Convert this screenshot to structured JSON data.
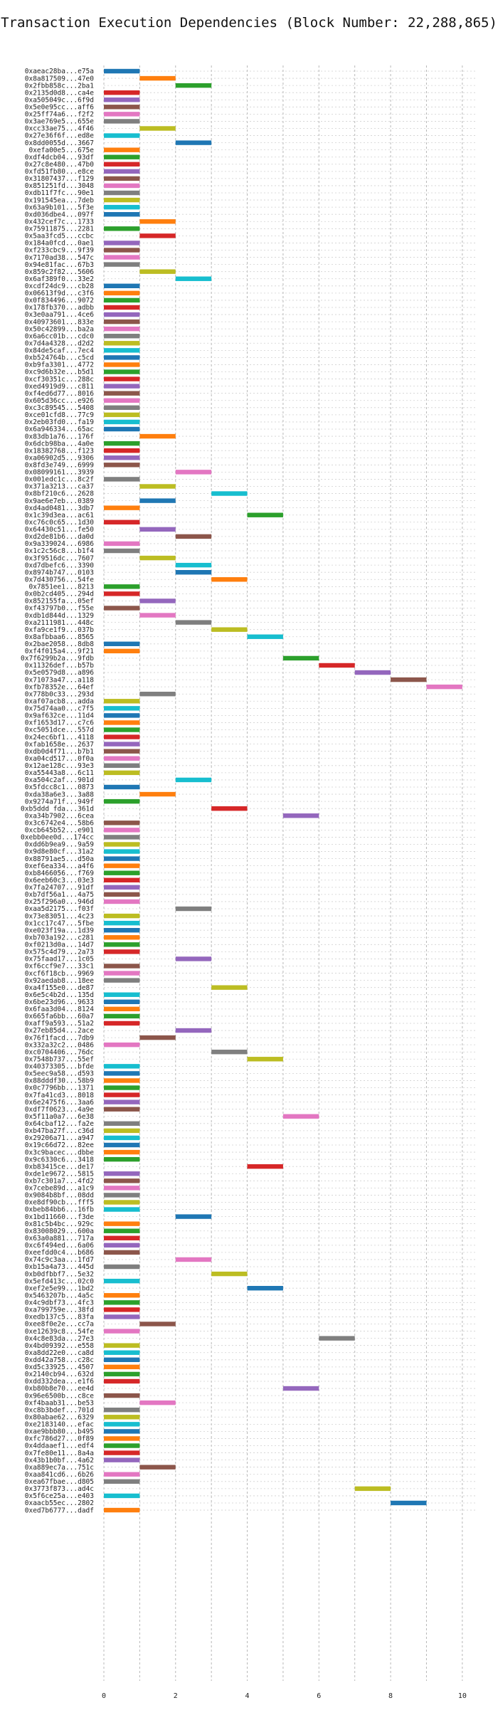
{
  "chart_data": {
    "type": "bar",
    "orientation": "horizontal-gantt",
    "title": "Transaction Execution Dependencies (Block Number: 22,288,865)",
    "xlabel": "",
    "ylabel": "",
    "xlim": [
      0,
      10.4
    ],
    "xticks": [
      0,
      2,
      4,
      6,
      8,
      10
    ],
    "grid": true,
    "palette": [
      "#1f77b4",
      "#ff7f0e",
      "#2ca02c",
      "#d62728",
      "#9467bd",
      "#8c564b",
      "#e377c2",
      "#7f7f7f",
      "#bcbd22",
      "#17becf"
    ],
    "transactions": [
      {
        "hash": "0xaeac28ba...e75a",
        "start": 0
      },
      {
        "hash": "0x8a817509...47e0",
        "start": 1
      },
      {
        "hash": "0x2fbb858c...2ba1",
        "start": 2
      },
      {
        "hash": "0x2135d0d8...ca4e",
        "start": 0
      },
      {
        "hash": "0xa505049c...6f9d",
        "start": 0
      },
      {
        "hash": "0x5e0e95cc...aff6",
        "start": 0
      },
      {
        "hash": "0x25ff74a6...f2f2",
        "start": 0
      },
      {
        "hash": "0x3ae769e5...655e",
        "start": 0
      },
      {
        "hash": "0xcc33ae75...4f46",
        "start": 1
      },
      {
        "hash": "0x27e36f6f...ed8e",
        "start": 0
      },
      {
        "hash": "0x8dd0055d...3667",
        "start": 2
      },
      {
        "hash": "0xefa00e5...675e",
        "start": 0
      },
      {
        "hash": "0xdf4dcb04...93df",
        "start": 0
      },
      {
        "hash": "0x27c8e480...47b0",
        "start": 0
      },
      {
        "hash": "0xfd51fb80...e8ce",
        "start": 0
      },
      {
        "hash": "0x31807437...f129",
        "start": 0
      },
      {
        "hash": "0x851251fd...3048",
        "start": 0
      },
      {
        "hash": "0xdb11f7fc...90e1",
        "start": 0
      },
      {
        "hash": "0x191545ea...7deb",
        "start": 0
      },
      {
        "hash": "0x63a9b101...5f3e",
        "start": 0
      },
      {
        "hash": "0xd036dbe4...097f",
        "start": 0
      },
      {
        "hash": "0x432cef7c...1733",
        "start": 1
      },
      {
        "hash": "0x75911875...2281",
        "start": 0
      },
      {
        "hash": "0x5aa3fcd5...ccbc",
        "start": 1
      },
      {
        "hash": "0x184a0fcd...0ae1",
        "start": 0
      },
      {
        "hash": "0xf233cbc9...9f39",
        "start": 0
      },
      {
        "hash": "0x7170ad38...547c",
        "start": 0
      },
      {
        "hash": "0x94e81fac...67b3",
        "start": 0
      },
      {
        "hash": "0x859c2f82...5606",
        "start": 1
      },
      {
        "hash": "0x6af389f0...33e2",
        "start": 2
      },
      {
        "hash": "0xcdf24dc9...cb28",
        "start": 0
      },
      {
        "hash": "0x06613f9d...c3f6",
        "start": 0
      },
      {
        "hash": "0x0f834496...9072",
        "start": 0
      },
      {
        "hash": "0x178fb370...adbb",
        "start": 0
      },
      {
        "hash": "0x3e0aa791...4ce6",
        "start": 0
      },
      {
        "hash": "0x40973601...833e",
        "start": 0
      },
      {
        "hash": "0x50c42899...ba2a",
        "start": 0
      },
      {
        "hash": "0x6a6cc01b...cdc0",
        "start": 0
      },
      {
        "hash": "0x7d4a4328...d2d2",
        "start": 0
      },
      {
        "hash": "0x84de5caf...7ec4",
        "start": 0
      },
      {
        "hash": "0xb524764b...c5cd",
        "start": 0
      },
      {
        "hash": "0xb9fa3301...4772",
        "start": 0
      },
      {
        "hash": "0xc9d6b32e...b5d1",
        "start": 0
      },
      {
        "hash": "0xcf30351c...288c",
        "start": 0
      },
      {
        "hash": "0xed4919d9...c811",
        "start": 0
      },
      {
        "hash": "0xf4ed6d77...8016",
        "start": 0
      },
      {
        "hash": "0x605d36cc...e926",
        "start": 0
      },
      {
        "hash": "0xc3c89545...5408",
        "start": 0
      },
      {
        "hash": "0xce01cfd8...77c9",
        "start": 0
      },
      {
        "hash": "0x2eb03fd0...fa19",
        "start": 0
      },
      {
        "hash": "0x6a946334...65ac",
        "start": 0
      },
      {
        "hash": "0x83db1a76...176f",
        "start": 1
      },
      {
        "hash": "0x6dcb98ba...4a0e",
        "start": 0
      },
      {
        "hash": "0x18382768...f123",
        "start": 0
      },
      {
        "hash": "0xa06902d5...9306",
        "start": 0
      },
      {
        "hash": "0x8fd3e749...6999",
        "start": 0
      },
      {
        "hash": "0x08099161...3939",
        "start": 2
      },
      {
        "hash": "0x001edc1c...8c2f",
        "start": 0
      },
      {
        "hash": "0x371a3213...ca37",
        "start": 1
      },
      {
        "hash": "0x8bf210c6...2628",
        "start": 3
      },
      {
        "hash": "0x9ae6e7eb...0389",
        "start": 1
      },
      {
        "hash": "0xd4ad0481...3db7",
        "start": 0
      },
      {
        "hash": "0x1c39d3ea...ac61",
        "start": 4
      },
      {
        "hash": "0xc76c0c65...1d30",
        "start": 0
      },
      {
        "hash": "0x64430c51...fe50",
        "start": 1
      },
      {
        "hash": "0xd2de81b6...da0d",
        "start": 2
      },
      {
        "hash": "0x9a339024...6986",
        "start": 0
      },
      {
        "hash": "0x1c2c56c8...b1f4",
        "start": 0
      },
      {
        "hash": "0x3f9516dc...7607",
        "start": 1
      },
      {
        "hash": "0xd7dbefc6...3390",
        "start": 2
      },
      {
        "hash": "0x8974b747...0103",
        "start": 2
      },
      {
        "hash": "0x7d430756...54fe",
        "start": 3
      },
      {
        "hash": "0x7851ee1...8213",
        "start": 0
      },
      {
        "hash": "0x0b2cd405...294d",
        "start": 0
      },
      {
        "hash": "0x852155fa...05ef",
        "start": 1
      },
      {
        "hash": "0xf43797b0...f55e",
        "start": 0
      },
      {
        "hash": "0xdb1d844d...1329",
        "start": 1
      },
      {
        "hash": "0xa2111981...448c",
        "start": 2
      },
      {
        "hash": "0xfa9ce1f9...037b",
        "start": 3
      },
      {
        "hash": "0x8afbbaa6...8565",
        "start": 4
      },
      {
        "hash": "0x2bae2058...8db8",
        "start": 0
      },
      {
        "hash": "0xf4f015a4...9f21",
        "start": 0
      },
      {
        "hash": "0x7f6299b2a...9fdb",
        "start": 5
      },
      {
        "hash": "0x11326def...b57b",
        "start": 6
      },
      {
        "hash": "0x5e0579d8...a896",
        "start": 7
      },
      {
        "hash": "0x71073a47...a118",
        "start": 8
      },
      {
        "hash": "0xfb78352e...64ef",
        "start": 9
      },
      {
        "hash": "0x778b0c33...293d",
        "start": 1
      },
      {
        "hash": "0xaf07acb8...adda",
        "start": 0
      },
      {
        "hash": "0x75d74aa0...c7f5",
        "start": 0
      },
      {
        "hash": "0x9af632ce...11d4",
        "start": 0
      },
      {
        "hash": "0xf1653d17...c7c6",
        "start": 0
      },
      {
        "hash": "0xc5051dce...557d",
        "start": 0
      },
      {
        "hash": "0x24ec6bf1...4118",
        "start": 0
      },
      {
        "hash": "0xfab1658e...2637",
        "start": 0
      },
      {
        "hash": "0xdb0d4f71...b7b1",
        "start": 0
      },
      {
        "hash": "0xa04cd517...0f0a",
        "start": 0
      },
      {
        "hash": "0x12ae128c...93e3",
        "start": 0
      },
      {
        "hash": "0xa55443a8...6c11",
        "start": 0
      },
      {
        "hash": "0xa504c2af...901d",
        "start": 2
      },
      {
        "hash": "0x5fdcc8c1...0873",
        "start": 0
      },
      {
        "hash": "0xda38a6e3...3a88",
        "start": 1
      },
      {
        "hash": "0x9274a71f...949f",
        "start": 0
      },
      {
        "hash": "0xb5ddd fda...361d",
        "start": 3
      },
      {
        "hash": "0xa34b7902...6cea",
        "start": 5
      },
      {
        "hash": "0x3c6742e4...58b6",
        "start": 0
      },
      {
        "hash": "0xcb645b52...e901",
        "start": 0
      },
      {
        "hash": "0xebb0ee0d...174cc",
        "start": 0
      },
      {
        "hash": "0xdd6b9ea9...9a59",
        "start": 0
      },
      {
        "hash": "0x9d8e80cf...31a2",
        "start": 0
      },
      {
        "hash": "0x88791ae5...d50a",
        "start": 0
      },
      {
        "hash": "0xef6ea334...a4f6",
        "start": 0
      },
      {
        "hash": "0xb8466056...f769",
        "start": 0
      },
      {
        "hash": "0x6eeb60c3...03e3",
        "start": 0
      },
      {
        "hash": "0x7fa24707...91df",
        "start": 0
      },
      {
        "hash": "0xb7df56a1...4a75",
        "start": 0
      },
      {
        "hash": "0x25f296a0...946d",
        "start": 0
      },
      {
        "hash": "0xaa5d2175...f03f",
        "start": 2
      },
      {
        "hash": "0x73e83051...4c23",
        "start": 0
      },
      {
        "hash": "0x1cc17c47...5fbe",
        "start": 0
      },
      {
        "hash": "0xe023f19a...1d39",
        "start": 0
      },
      {
        "hash": "0xb703a192...c281",
        "start": 0
      },
      {
        "hash": "0xf0213d0a...14d7",
        "start": 0
      },
      {
        "hash": "0x575c4d79...2a73",
        "start": 0
      },
      {
        "hash": "0x75faad17...1c05",
        "start": 2
      },
      {
        "hash": "0xf6ccf9e7...33c1",
        "start": 0
      },
      {
        "hash": "0xcf6f18cb...9969",
        "start": 0
      },
      {
        "hash": "0x92aedab8...18ee",
        "start": 0
      },
      {
        "hash": "0xa4f155e0...de87",
        "start": 3
      },
      {
        "hash": "0x6e5c4b2d...135d",
        "start": 0
      },
      {
        "hash": "0x6be23d96...9633",
        "start": 0
      },
      {
        "hash": "0x6faa3d04...8124",
        "start": 0
      },
      {
        "hash": "0x665fa6bb...60a7",
        "start": 0
      },
      {
        "hash": "0xaff9a593...51a2",
        "start": 0
      },
      {
        "hash": "0x27eb85d4...2ace",
        "start": 2
      },
      {
        "hash": "0x76f1facd...7db9",
        "start": 1
      },
      {
        "hash": "0x332a32c2...0486",
        "start": 0
      },
      {
        "hash": "0xc0704406...76dc",
        "start": 3
      },
      {
        "hash": "0x7548b737...55ef",
        "start": 4
      },
      {
        "hash": "0x40373305...bfde",
        "start": 0
      },
      {
        "hash": "0x5eec9a58...d593",
        "start": 0
      },
      {
        "hash": "0x88dddf30...58b9",
        "start": 0
      },
      {
        "hash": "0x0c7796bb...1371",
        "start": 0
      },
      {
        "hash": "0x7fa41cd3...8018",
        "start": 0
      },
      {
        "hash": "0x6e2475f6...3aa6",
        "start": 0
      },
      {
        "hash": "0xdf7f0623...4a9e",
        "start": 0
      },
      {
        "hash": "0x5f11a0a7...6e38",
        "start": 5
      },
      {
        "hash": "0x64cbaf12...fa2e",
        "start": 0
      },
      {
        "hash": "0xb47ba27f...c36d",
        "start": 0
      },
      {
        "hash": "0x29206a71...a947",
        "start": 0
      },
      {
        "hash": "0x19c66d72...82ee",
        "start": 0
      },
      {
        "hash": "0x3c9bacec...dbbe",
        "start": 0
      },
      {
        "hash": "0x9c6330c6...3418",
        "start": 0
      },
      {
        "hash": "0xb83415ce...de17",
        "start": 4
      },
      {
        "hash": "0xde1e9672...5815",
        "start": 0
      },
      {
        "hash": "0xb7c301a7...4fd2",
        "start": 0
      },
      {
        "hash": "0x7cebe89d...a1c9",
        "start": 0
      },
      {
        "hash": "0x9084b8bf...08dd",
        "start": 0
      },
      {
        "hash": "0xe8df90cb...fff5",
        "start": 0
      },
      {
        "hash": "0xbeb84bb6...16fb",
        "start": 0
      },
      {
        "hash": "0x1bd11660...f3de",
        "start": 2
      },
      {
        "hash": "0x81c5b4bc...929c",
        "start": 0
      },
      {
        "hash": "0x83008029...600a",
        "start": 0
      },
      {
        "hash": "0x63a0a881...717a",
        "start": 0
      },
      {
        "hash": "0xc6f494ed...6a06",
        "start": 0
      },
      {
        "hash": "0xeefdd0c4...b686",
        "start": 0
      },
      {
        "hash": "0x74c9c3aa...1fd7",
        "start": 2
      },
      {
        "hash": "0xb15a4a73...445d",
        "start": 0
      },
      {
        "hash": "0xb0dfbbf7...5e32",
        "start": 3
      },
      {
        "hash": "0x5efd413c...02c0",
        "start": 0
      },
      {
        "hash": "0xef2e5e99...1bd2",
        "start": 4
      },
      {
        "hash": "0x5463207b...4a5c",
        "start": 0
      },
      {
        "hash": "0x4c9dbf73...4fc3",
        "start": 0
      },
      {
        "hash": "0xa799759e...38fd",
        "start": 0
      },
      {
        "hash": "0xedb137c5...83fa",
        "start": 0
      },
      {
        "hash": "0xee8f0e2e...cc7a",
        "start": 1
      },
      {
        "hash": "0xe12639c8...54fe",
        "start": 0
      },
      {
        "hash": "0x4c8e83da...27e3",
        "start": 6
      },
      {
        "hash": "0x4bd09392...e558",
        "start": 0
      },
      {
        "hash": "0xa8dd22e0...ca8d",
        "start": 0
      },
      {
        "hash": "0xdd42a758...c28c",
        "start": 0
      },
      {
        "hash": "0xd5c33925...4507",
        "start": 0
      },
      {
        "hash": "0x2140cb94...632d",
        "start": 0
      },
      {
        "hash": "0xdd332dea...e1f6",
        "start": 0
      },
      {
        "hash": "0xb80b8e70...ee4d",
        "start": 5
      },
      {
        "hash": "0x96e6500b...c8ce",
        "start": 0
      },
      {
        "hash": "0xf4baab31...be53",
        "start": 1
      },
      {
        "hash": "0xc8b3bdef...701d",
        "start": 0
      },
      {
        "hash": "0x80abae62...6329",
        "start": 0
      },
      {
        "hash": "0xe2183140...efac",
        "start": 0
      },
      {
        "hash": "0xae9bbb80...b495",
        "start": 0
      },
      {
        "hash": "0xfc786d27...0f89",
        "start": 0
      },
      {
        "hash": "0x4ddaaef1...edf4",
        "start": 0
      },
      {
        "hash": "0x7fe80e11...8a4a",
        "start": 0
      },
      {
        "hash": "0x43b1b0bf...4a62",
        "start": 0
      },
      {
        "hash": "0xa889ec7a...751c",
        "start": 1
      },
      {
        "hash": "0xaa841cd6...6b26",
        "start": 0
      },
      {
        "hash": "0xea67fbae...d805",
        "start": 0
      },
      {
        "hash": "0x3773f873...ad4c",
        "start": 7
      },
      {
        "hash": "0x5f6ce25a...e403",
        "start": 0
      },
      {
        "hash": "0xaacb55ec...2802",
        "start": 8
      },
      {
        "hash": "0xed7b6777...dadf",
        "start": 0
      }
    ]
  }
}
